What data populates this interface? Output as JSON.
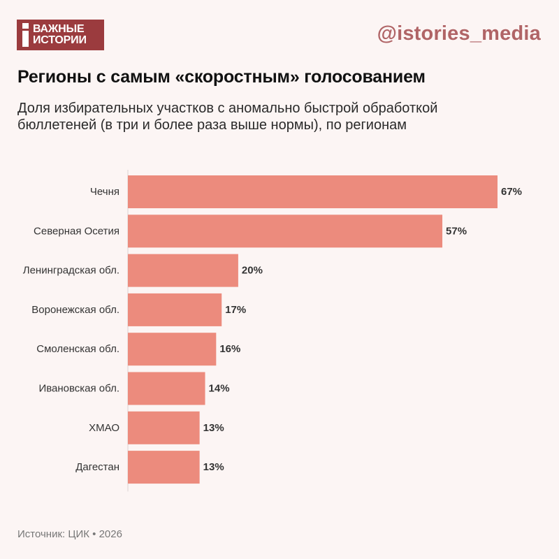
{
  "brand": {
    "logo_line1": "ВАЖНЫЕ",
    "logo_line2": "ИСТОРИИ",
    "handle": "@istories_media"
  },
  "title": "Регионы с самым «скоростным» голосованием",
  "subtitle": "Доля избирательных участков с аномально быстрой обработкой бюллетеней (в три и более раза выше нормы), по регионам",
  "footer": "Источник: ЦИК • 2026",
  "colors": {
    "bar": "#ec8b7d",
    "brand": "#9b3b3e",
    "handle": "#b06466",
    "background": "#fcf5f4"
  },
  "chart_data": {
    "type": "bar",
    "orientation": "horizontal",
    "categories": [
      "Чечня",
      "Северная Осетия",
      "Ленинградская обл.",
      "Воронежская обл.",
      "Смоленская обл.",
      "Ивановская обл.",
      "ХМАО",
      "Дагестан"
    ],
    "values": [
      67,
      57,
      20,
      17,
      16,
      14,
      13,
      13
    ],
    "value_labels": [
      "67%",
      "57%",
      "20%",
      "17%",
      "16%",
      "14%",
      "13%",
      "13%"
    ],
    "unit": "%",
    "xlim": [
      0,
      67
    ],
    "grid": false,
    "legend": "none"
  }
}
